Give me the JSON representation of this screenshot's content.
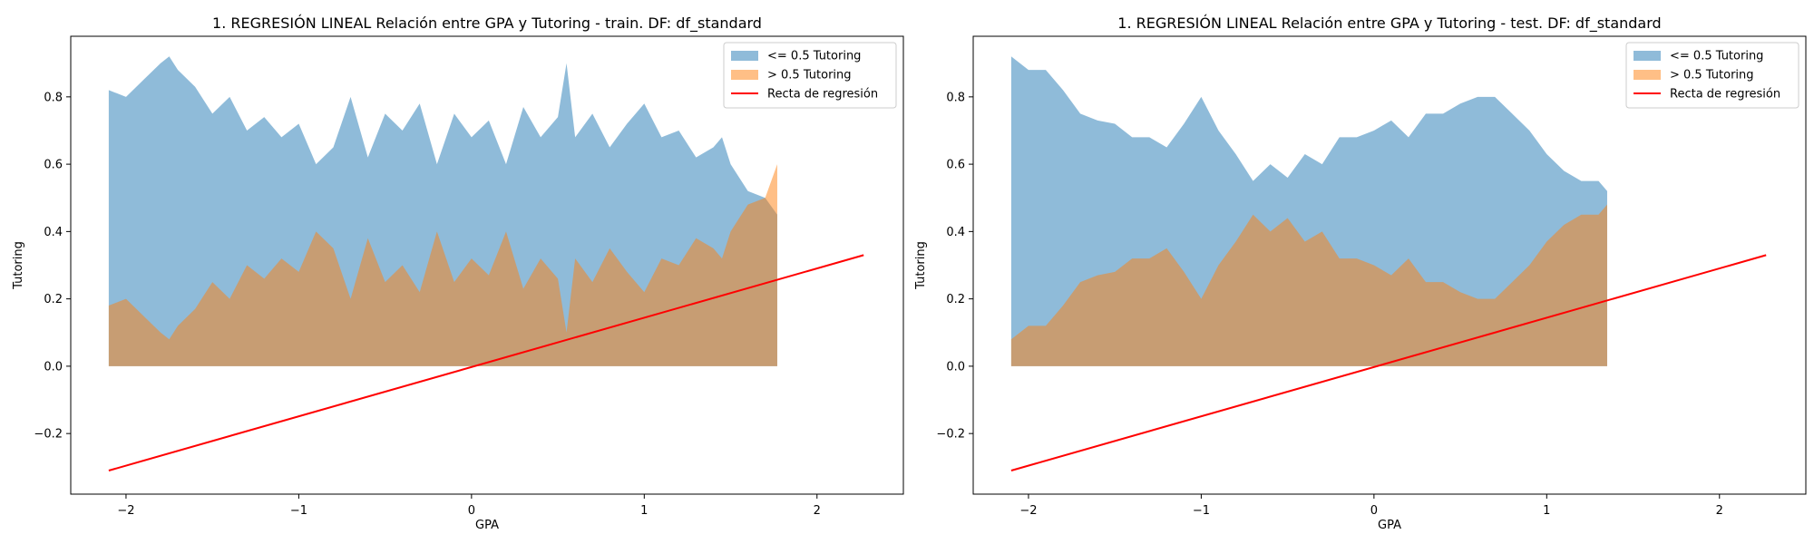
{
  "chart_data": [
    {
      "type": "area",
      "title": "1. REGRESIÓN LINEAL Relación entre GPA y Tutoring - train. DF: df_standard",
      "xlabel": "GPA",
      "ylabel": "Tutoring",
      "xlim": [
        -2.32,
        2.5
      ],
      "ylim": [
        -0.38,
        0.98
      ],
      "xticks": [
        -2,
        -1,
        0,
        1,
        2
      ],
      "xtick_labels": [
        "−2",
        "−1",
        "0",
        "1",
        "2"
      ],
      "yticks": [
        -0.2,
        0.0,
        0.2,
        0.4,
        0.6,
        0.8
      ],
      "ytick_labels": [
        "−0.2",
        "0.0",
        "0.2",
        "0.4",
        "0.6",
        "0.8"
      ],
      "grid": false,
      "legend_position": "top-right",
      "series": [
        {
          "name": "<= 0.5 Tutoring",
          "color": "#1f77b4",
          "opacity": 0.5,
          "kind": "fill",
          "x": [
            -2.1,
            -2.0,
            -1.9,
            -1.8,
            -1.75,
            -1.7,
            -1.6,
            -1.5,
            -1.4,
            -1.3,
            -1.2,
            -1.1,
            -1.0,
            -0.9,
            -0.8,
            -0.7,
            -0.6,
            -0.5,
            -0.4,
            -0.3,
            -0.2,
            -0.1,
            0.0,
            0.1,
            0.2,
            0.3,
            0.4,
            0.5,
            0.55,
            0.6,
            0.7,
            0.8,
            0.9,
            1.0,
            1.1,
            1.2,
            1.3,
            1.4,
            1.45,
            1.5,
            1.6,
            1.7,
            1.77
          ],
          "y": [
            0.82,
            0.8,
            0.85,
            0.9,
            0.92,
            0.88,
            0.83,
            0.75,
            0.8,
            0.7,
            0.74,
            0.68,
            0.72,
            0.6,
            0.65,
            0.8,
            0.62,
            0.75,
            0.7,
            0.78,
            0.6,
            0.75,
            0.68,
            0.73,
            0.6,
            0.77,
            0.68,
            0.74,
            0.9,
            0.68,
            0.75,
            0.65,
            0.72,
            0.78,
            0.68,
            0.7,
            0.62,
            0.65,
            0.68,
            0.6,
            0.52,
            0.5,
            0.45
          ]
        },
        {
          "name": "> 0.5 Tutoring",
          "color": "#ff7f0e",
          "opacity": 0.5,
          "kind": "fill",
          "x": [
            -2.1,
            -2.0,
            -1.9,
            -1.8,
            -1.75,
            -1.7,
            -1.6,
            -1.5,
            -1.4,
            -1.3,
            -1.2,
            -1.1,
            -1.0,
            -0.9,
            -0.8,
            -0.7,
            -0.6,
            -0.5,
            -0.4,
            -0.3,
            -0.2,
            -0.1,
            0.0,
            0.1,
            0.2,
            0.3,
            0.4,
            0.5,
            0.55,
            0.6,
            0.7,
            0.8,
            0.9,
            1.0,
            1.1,
            1.2,
            1.3,
            1.4,
            1.45,
            1.5,
            1.6,
            1.7,
            1.77
          ],
          "y": [
            0.18,
            0.2,
            0.15,
            0.1,
            0.08,
            0.12,
            0.17,
            0.25,
            0.2,
            0.3,
            0.26,
            0.32,
            0.28,
            0.4,
            0.35,
            0.2,
            0.38,
            0.25,
            0.3,
            0.22,
            0.4,
            0.25,
            0.32,
            0.27,
            0.4,
            0.23,
            0.32,
            0.26,
            0.1,
            0.32,
            0.25,
            0.35,
            0.28,
            0.22,
            0.32,
            0.3,
            0.38,
            0.35,
            0.32,
            0.4,
            0.48,
            0.5,
            0.6
          ]
        },
        {
          "name": "Recta de regresión",
          "color": "#ff0000",
          "kind": "line",
          "x": [
            -2.1,
            2.27
          ],
          "y": [
            -0.31,
            0.33
          ]
        }
      ]
    },
    {
      "type": "area",
      "title": "1. REGRESIÓN LINEAL Relación entre GPA y Tutoring - test. DF: df_standard",
      "xlabel": "GPA",
      "ylabel": "Tutoring",
      "xlim": [
        -2.32,
        2.5
      ],
      "ylim": [
        -0.38,
        0.98
      ],
      "xticks": [
        -2,
        -1,
        0,
        1,
        2
      ],
      "xtick_labels": [
        "−2",
        "−1",
        "0",
        "1",
        "2"
      ],
      "yticks": [
        -0.2,
        0.0,
        0.2,
        0.4,
        0.6,
        0.8
      ],
      "ytick_labels": [
        "−0.2",
        "0.0",
        "0.2",
        "0.4",
        "0.6",
        "0.8"
      ],
      "grid": false,
      "legend_position": "top-right",
      "series": [
        {
          "name": "<= 0.5 Tutoring",
          "color": "#1f77b4",
          "opacity": 0.5,
          "kind": "fill",
          "x": [
            -2.1,
            -2.0,
            -1.9,
            -1.8,
            -1.7,
            -1.6,
            -1.5,
            -1.4,
            -1.3,
            -1.2,
            -1.1,
            -1.0,
            -0.9,
            -0.8,
            -0.7,
            -0.6,
            -0.5,
            -0.4,
            -0.3,
            -0.2,
            -0.1,
            0.0,
            0.1,
            0.2,
            0.3,
            0.4,
            0.5,
            0.6,
            0.7,
            0.8,
            0.9,
            1.0,
            1.1,
            1.2,
            1.3,
            1.35
          ],
          "y": [
            0.92,
            0.88,
            0.88,
            0.82,
            0.75,
            0.73,
            0.72,
            0.68,
            0.68,
            0.65,
            0.72,
            0.8,
            0.7,
            0.63,
            0.55,
            0.6,
            0.56,
            0.63,
            0.6,
            0.68,
            0.68,
            0.7,
            0.73,
            0.68,
            0.75,
            0.75,
            0.78,
            0.8,
            0.8,
            0.75,
            0.7,
            0.63,
            0.58,
            0.55,
            0.55,
            0.52
          ]
        },
        {
          "name": "> 0.5 Tutoring",
          "color": "#ff7f0e",
          "opacity": 0.5,
          "kind": "fill",
          "x": [
            -2.1,
            -2.0,
            -1.9,
            -1.8,
            -1.7,
            -1.6,
            -1.5,
            -1.4,
            -1.3,
            -1.2,
            -1.1,
            -1.0,
            -0.9,
            -0.8,
            -0.7,
            -0.6,
            -0.5,
            -0.4,
            -0.3,
            -0.2,
            -0.1,
            0.0,
            0.1,
            0.2,
            0.3,
            0.4,
            0.5,
            0.6,
            0.7,
            0.8,
            0.9,
            1.0,
            1.1,
            1.2,
            1.3,
            1.35
          ],
          "y": [
            0.08,
            0.12,
            0.12,
            0.18,
            0.25,
            0.27,
            0.28,
            0.32,
            0.32,
            0.35,
            0.28,
            0.2,
            0.3,
            0.37,
            0.45,
            0.4,
            0.44,
            0.37,
            0.4,
            0.32,
            0.32,
            0.3,
            0.27,
            0.32,
            0.25,
            0.25,
            0.22,
            0.2,
            0.2,
            0.25,
            0.3,
            0.37,
            0.42,
            0.45,
            0.45,
            0.48
          ]
        },
        {
          "name": "Recta de regresión",
          "color": "#ff0000",
          "kind": "line",
          "x": [
            -2.1,
            2.27
          ],
          "y": [
            -0.31,
            0.33
          ]
        }
      ]
    }
  ]
}
